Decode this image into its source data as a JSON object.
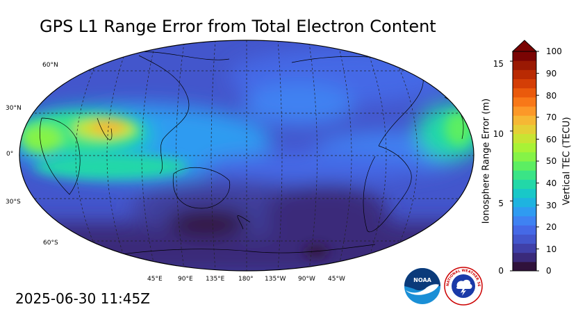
{
  "title": "GPS L1 Range Error from Total Electron Content",
  "timestamp": "2025-06-30 11:45Z",
  "map": {
    "lat_labels": [
      "60°N",
      "30°N",
      "0°",
      "30°S",
      "60°S"
    ],
    "lon_labels": [
      "45°E",
      "90°E",
      "135°E",
      "180°",
      "135°W",
      "90°W",
      "45°W"
    ]
  },
  "colorbar": {
    "left_label": "Ionosphere Range Error (m)",
    "right_label": "Vertical TEC (TECU)",
    "left_ticks": [
      "0",
      "5",
      "10",
      "15"
    ],
    "right_ticks": [
      "0",
      "10",
      "20",
      "30",
      "40",
      "50",
      "60",
      "70",
      "80",
      "90",
      "100"
    ],
    "colors": [
      "#30123b",
      "#3a2a7a",
      "#4040a8",
      "#4356cc",
      "#4569e6",
      "#3f82f2",
      "#2f9bf1",
      "#1eb3e0",
      "#18c8c8",
      "#22d8a8",
      "#3ae486",
      "#5cee62",
      "#85f347",
      "#a8f236",
      "#c8e433",
      "#e5cf36",
      "#f6b734",
      "#fc9828",
      "#f87818",
      "#ea5a0c",
      "#d43e06",
      "#b92a03",
      "#9a1903",
      "#7a0403"
    ]
  },
  "logos": {
    "noaa_text": "NOAA",
    "nws_text": "NATIONAL WEATHER SERVICE"
  }
}
